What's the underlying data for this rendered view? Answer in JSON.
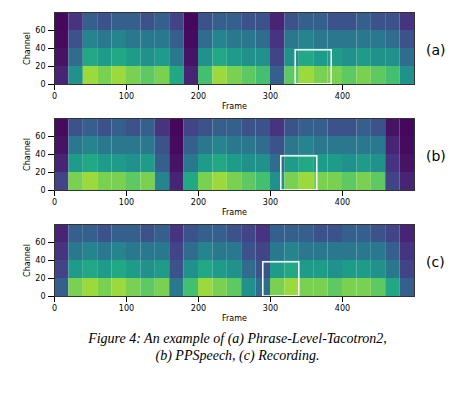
{
  "chart_data": [
    {
      "type": "heatmap",
      "panel_label": "(a)",
      "xlabel": "Frame",
      "ylabel": "Channel",
      "xlim": [
        0,
        500
      ],
      "ylim": [
        0,
        80
      ],
      "xticks": [
        0,
        100,
        200,
        300,
        400
      ],
      "yticks": [
        0,
        20,
        40,
        60
      ],
      "color": "viridis",
      "zlim": [
        0,
        1
      ],
      "frame_bins": [
        0,
        20,
        40,
        60,
        80,
        100,
        120,
        140,
        160,
        180,
        200,
        220,
        240,
        260,
        280,
        300,
        320,
        340,
        360,
        380,
        400,
        420,
        440,
        460,
        480,
        500
      ],
      "channel_bins": [
        0,
        20,
        40,
        60,
        80
      ],
      "values": [
        [
          0.1,
          0.5,
          0.85,
          0.8,
          0.85,
          0.8,
          0.75,
          0.8,
          0.6,
          0.1,
          0.7,
          0.85,
          0.8,
          0.75,
          0.7,
          0.3,
          0.75,
          0.85,
          0.8,
          0.8,
          0.75,
          0.8,
          0.75,
          0.7,
          0.5
        ],
        [
          0.05,
          0.35,
          0.6,
          0.55,
          0.6,
          0.55,
          0.5,
          0.55,
          0.4,
          0.05,
          0.5,
          0.6,
          0.55,
          0.5,
          0.5,
          0.2,
          0.5,
          0.6,
          0.55,
          0.55,
          0.5,
          0.55,
          0.5,
          0.5,
          0.35
        ],
        [
          0.03,
          0.25,
          0.45,
          0.4,
          0.45,
          0.4,
          0.4,
          0.4,
          0.3,
          0.03,
          0.35,
          0.45,
          0.4,
          0.4,
          0.35,
          0.15,
          0.4,
          0.45,
          0.4,
          0.4,
          0.4,
          0.4,
          0.4,
          0.35,
          0.25
        ],
        [
          0.02,
          0.15,
          0.3,
          0.25,
          0.3,
          0.3,
          0.25,
          0.3,
          0.2,
          0.02,
          0.25,
          0.3,
          0.3,
          0.25,
          0.25,
          0.1,
          0.25,
          0.3,
          0.3,
          0.25,
          0.25,
          0.3,
          0.25,
          0.25,
          0.15
        ]
      ],
      "highlight": {
        "x": [
          335,
          385
        ],
        "y": [
          0,
          38
        ]
      }
    },
    {
      "type": "heatmap",
      "panel_label": "(b)",
      "xlabel": "Frame",
      "ylabel": "Channel",
      "xlim": [
        0,
        500
      ],
      "ylim": [
        0,
        80
      ],
      "xticks": [
        0,
        100,
        200,
        300,
        400
      ],
      "yticks": [
        0,
        20,
        40,
        60
      ],
      "color": "viridis",
      "zlim": [
        0,
        1
      ],
      "frame_bins": [
        0,
        20,
        40,
        60,
        80,
        100,
        120,
        140,
        160,
        180,
        200,
        220,
        240,
        260,
        280,
        300,
        320,
        340,
        360,
        380,
        400,
        420,
        440,
        460,
        480,
        500
      ],
      "channel_bins": [
        0,
        20,
        40,
        60,
        80
      ],
      "values": [
        [
          0.2,
          0.8,
          0.85,
          0.8,
          0.8,
          0.75,
          0.8,
          0.45,
          0.1,
          0.6,
          0.8,
          0.85,
          0.8,
          0.75,
          0.7,
          0.5,
          0.8,
          0.85,
          0.8,
          0.8,
          0.75,
          0.8,
          0.75,
          0.2,
          0.1
        ],
        [
          0.1,
          0.55,
          0.6,
          0.55,
          0.55,
          0.5,
          0.55,
          0.3,
          0.05,
          0.4,
          0.55,
          0.6,
          0.55,
          0.5,
          0.5,
          0.35,
          0.55,
          0.6,
          0.55,
          0.55,
          0.5,
          0.55,
          0.5,
          0.15,
          0.05
        ],
        [
          0.05,
          0.4,
          0.45,
          0.4,
          0.4,
          0.4,
          0.4,
          0.25,
          0.03,
          0.3,
          0.4,
          0.45,
          0.4,
          0.4,
          0.35,
          0.25,
          0.4,
          0.45,
          0.4,
          0.4,
          0.4,
          0.4,
          0.4,
          0.1,
          0.03
        ],
        [
          0.03,
          0.25,
          0.3,
          0.25,
          0.3,
          0.25,
          0.3,
          0.15,
          0.02,
          0.2,
          0.25,
          0.3,
          0.3,
          0.25,
          0.25,
          0.15,
          0.25,
          0.3,
          0.3,
          0.25,
          0.25,
          0.3,
          0.25,
          0.05,
          0.02
        ]
      ],
      "highlight": {
        "x": [
          315,
          365
        ],
        "y": [
          0,
          38
        ]
      }
    },
    {
      "type": "heatmap",
      "panel_label": "(c)",
      "xlabel": "Frame",
      "ylabel": "Channel",
      "xlim": [
        0,
        500
      ],
      "ylim": [
        0,
        80
      ],
      "xticks": [
        0,
        100,
        200,
        300,
        400
      ],
      "yticks": [
        0,
        20,
        40,
        60
      ],
      "color": "viridis",
      "zlim": [
        0,
        1
      ],
      "frame_bins": [
        0,
        20,
        40,
        60,
        80,
        100,
        120,
        140,
        160,
        180,
        200,
        220,
        240,
        260,
        280,
        300,
        320,
        340,
        360,
        380,
        400,
        420,
        440,
        460,
        480,
        500
      ],
      "channel_bins": [
        0,
        20,
        40,
        60,
        80
      ],
      "values": [
        [
          0.3,
          0.8,
          0.85,
          0.8,
          0.85,
          0.8,
          0.75,
          0.8,
          0.4,
          0.7,
          0.85,
          0.8,
          0.75,
          0.5,
          0.35,
          0.8,
          0.85,
          0.8,
          0.8,
          0.75,
          0.8,
          0.8,
          0.75,
          0.6,
          0.3
        ],
        [
          0.2,
          0.55,
          0.6,
          0.55,
          0.6,
          0.55,
          0.5,
          0.55,
          0.25,
          0.5,
          0.6,
          0.55,
          0.5,
          0.35,
          0.25,
          0.55,
          0.6,
          0.55,
          0.55,
          0.5,
          0.55,
          0.55,
          0.5,
          0.4,
          0.2
        ],
        [
          0.15,
          0.4,
          0.45,
          0.4,
          0.45,
          0.4,
          0.4,
          0.4,
          0.2,
          0.35,
          0.45,
          0.4,
          0.4,
          0.25,
          0.2,
          0.4,
          0.45,
          0.4,
          0.4,
          0.4,
          0.4,
          0.4,
          0.4,
          0.3,
          0.15
        ],
        [
          0.1,
          0.3,
          0.3,
          0.25,
          0.3,
          0.3,
          0.25,
          0.3,
          0.15,
          0.25,
          0.3,
          0.3,
          0.25,
          0.2,
          0.15,
          0.3,
          0.3,
          0.3,
          0.25,
          0.25,
          0.3,
          0.3,
          0.25,
          0.2,
          0.1
        ]
      ],
      "highlight": {
        "x": [
          290,
          340
        ],
        "y": [
          0,
          38
        ]
      }
    }
  ],
  "caption": [
    "Figure 4:  An example of (a) Phrase-Level-Tacotron2,",
    "(b) PPSpeech, (c) Recording."
  ]
}
